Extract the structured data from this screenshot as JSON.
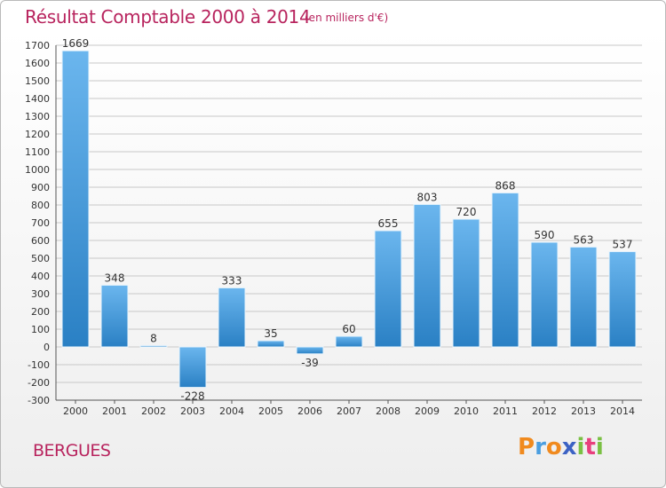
{
  "title": "Résultat Comptable 2000 à 2014",
  "subtitle": "(en milliers d'€)",
  "city": "BERGUES",
  "brand": {
    "letters": [
      "P",
      "r",
      "o",
      "x",
      "i",
      "t",
      "i"
    ],
    "colors": [
      "#f08a1e",
      "#4a9ee0",
      "#f08a1e",
      "#3c62c4",
      "#7ac043",
      "#e83f7d",
      "#7ac043"
    ]
  },
  "colors": {
    "title": "#b8245e",
    "bar_light": "#6bb6ee",
    "bar_dark": "#2a80c4",
    "grid": "#c8c8c8"
  },
  "chart_data": {
    "type": "bar",
    "categories": [
      "2000",
      "2001",
      "2002",
      "2003",
      "2004",
      "2005",
      "2006",
      "2007",
      "2008",
      "2009",
      "2010",
      "2011",
      "2012",
      "2013",
      "2014"
    ],
    "values": [
      1669,
      348,
      8,
      -228,
      333,
      35,
      -39,
      60,
      655,
      803,
      720,
      868,
      590,
      563,
      537
    ],
    "title": "Résultat Comptable 2000 à 2014",
    "ylim": [
      -300,
      1700
    ],
    "yticks": [
      -300,
      -200,
      -100,
      0,
      100,
      200,
      300,
      400,
      500,
      600,
      700,
      800,
      900,
      1000,
      1100,
      1200,
      1300,
      1400,
      1500,
      1600,
      1700
    ],
    "grid": "horizontal"
  }
}
